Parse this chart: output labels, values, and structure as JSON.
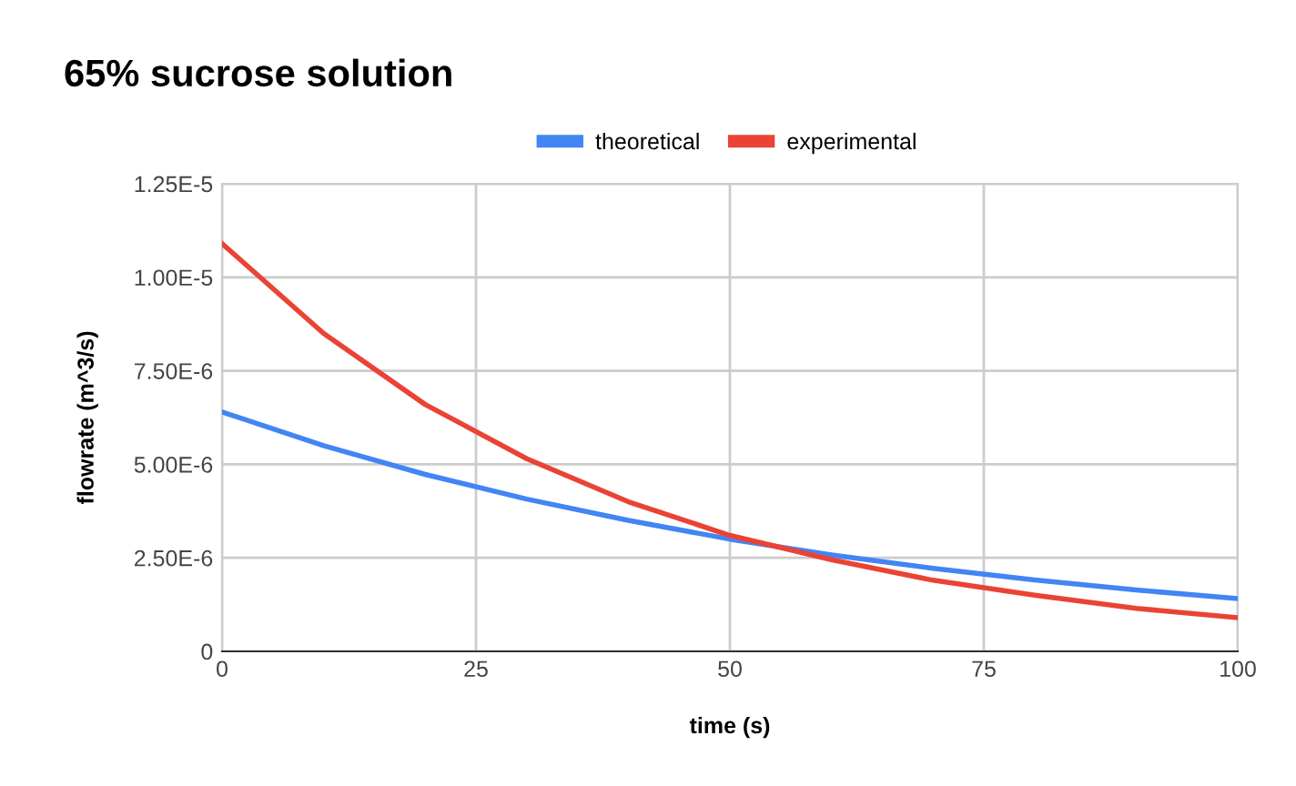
{
  "chart_data": {
    "type": "line",
    "title": "65% sucrose solution",
    "xlabel": "time (s)",
    "ylabel": "flowrate (m^3/s)",
    "x": [
      0,
      10,
      20,
      30,
      40,
      50,
      60,
      70,
      80,
      90,
      100
    ],
    "series": [
      {
        "name": "theoretical",
        "color": "#4285f4",
        "values": [
          6.4e-06,
          5.5e-06,
          4.73e-06,
          4.07e-06,
          3.5e-06,
          3e-06,
          2.58e-06,
          2.22e-06,
          1.91e-06,
          1.64e-06,
          1.41e-06
        ]
      },
      {
        "name": "experimental",
        "color": "#ea4335",
        "values": [
          1.09e-05,
          8.5e-06,
          6.6e-06,
          5.15e-06,
          4e-06,
          3.1e-06,
          2.45e-06,
          1.9e-06,
          1.5e-06,
          1.15e-06,
          9e-07
        ]
      }
    ],
    "xlim": [
      0,
      100
    ],
    "xticks": [
      0,
      25,
      50,
      75,
      100
    ],
    "ylim": [
      0,
      1.25e-05
    ],
    "yticks": [
      0,
      {
        "value": 2.5e-06,
        "label": "2.50E-6"
      },
      {
        "value": 5e-06,
        "label": "5.00E-6"
      },
      {
        "value": 7.5e-06,
        "label": "7.50E-6"
      },
      {
        "value": 1e-05,
        "label": "1.00E-5"
      },
      {
        "value": 1.25e-05,
        "label": "1.25E-5"
      }
    ],
    "grid": true,
    "legend": "top",
    "marker": "none",
    "line_style": "solid"
  }
}
